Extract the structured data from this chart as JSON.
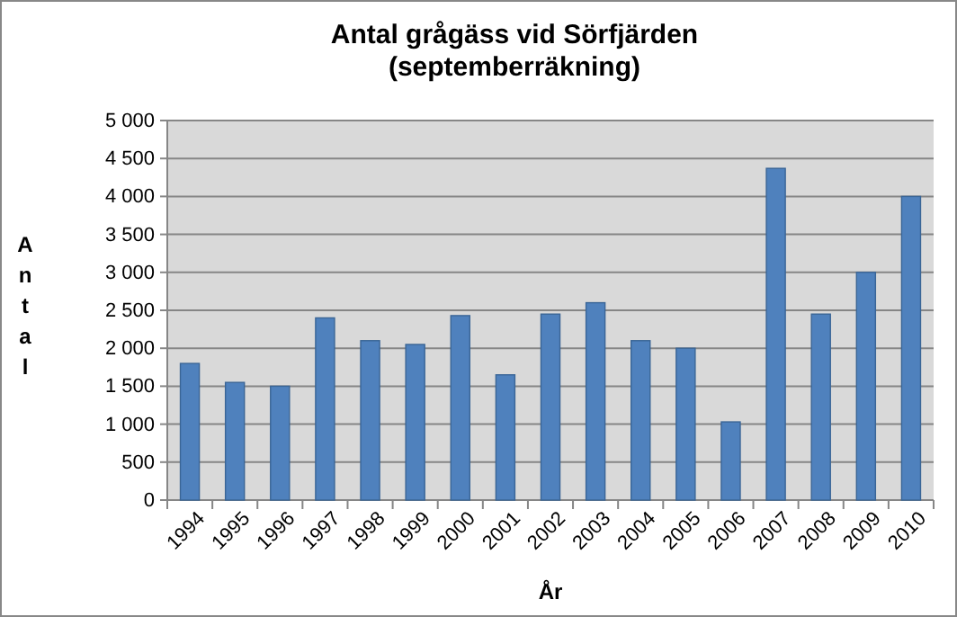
{
  "chart_data": {
    "type": "bar",
    "title": "Antal grågäss vid Sörfjärden\n(septemberräkning)",
    "xlabel": "År",
    "ylabel": "Antal",
    "categories": [
      "1994",
      "1995",
      "1996",
      "1997",
      "1998",
      "1999",
      "2000",
      "2001",
      "2002",
      "2003",
      "2004",
      "2005",
      "2006",
      "2007",
      "2008",
      "2009",
      "2010"
    ],
    "values": [
      1800,
      1550,
      1500,
      2400,
      2100,
      2050,
      2430,
      1650,
      2450,
      2600,
      2100,
      2000,
      1030,
      4370,
      2450,
      3000,
      4000
    ],
    "color": "#4f81bd",
    "ylim": [
      0,
      5000
    ],
    "yticks": [
      {
        "value": 0,
        "label": "0"
      },
      {
        "value": 500,
        "label": "500"
      },
      {
        "value": 1000,
        "label": "1 000"
      },
      {
        "value": 1500,
        "label": "1 500"
      },
      {
        "value": 2000,
        "label": "2 000"
      },
      {
        "value": 2500,
        "label": "2 500"
      },
      {
        "value": 3000,
        "label": "3 000"
      },
      {
        "value": 3500,
        "label": "3 500"
      },
      {
        "value": 4000,
        "label": "4 000"
      },
      {
        "value": 4500,
        "label": "4 500"
      },
      {
        "value": 5000,
        "label": "5 000"
      }
    ],
    "grid": "y"
  }
}
